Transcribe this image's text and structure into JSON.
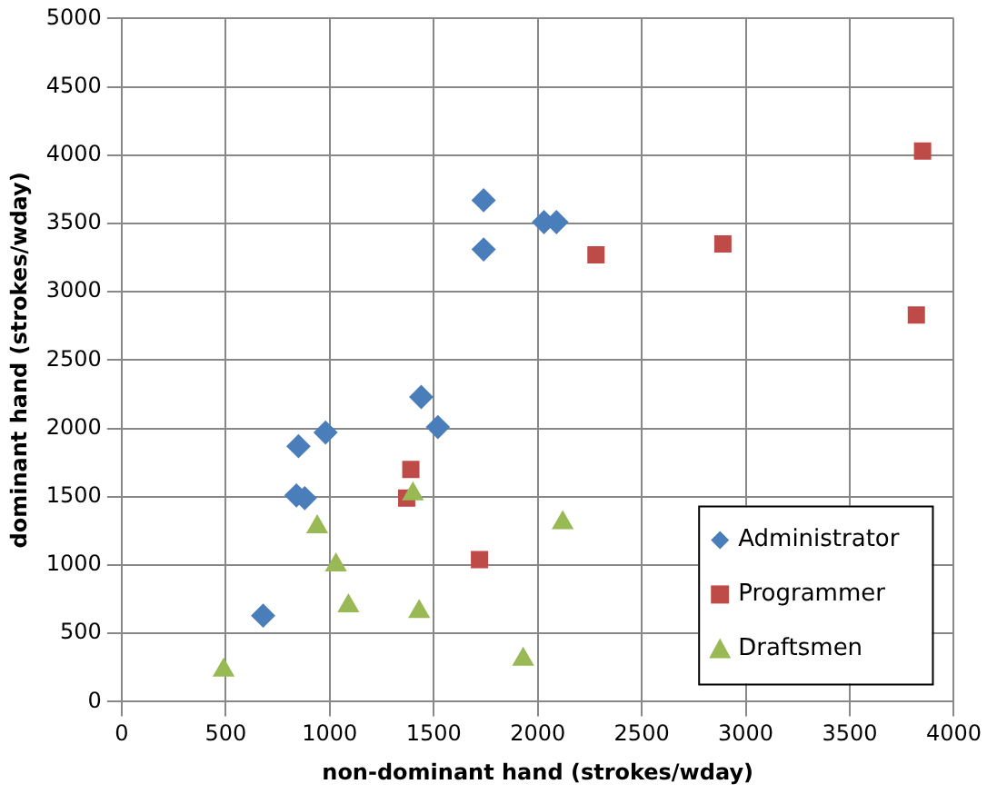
{
  "chart_data": {
    "type": "scatter",
    "xlabel": "non-dominant hand (strokes/wday)",
    "ylabel": "dominant hand (strokes/wday)",
    "xlim": [
      0,
      4000
    ],
    "xticks": [
      0,
      500,
      1000,
      1500,
      2000,
      2500,
      3000,
      3500,
      4000
    ],
    "ylim": [
      0,
      5000
    ],
    "yticks": [
      0,
      500,
      1000,
      1500,
      2000,
      2500,
      3000,
      3500,
      4000,
      4500,
      5000
    ],
    "grid": true,
    "legend": "bottom right",
    "series": [
      {
        "name": "Administrator",
        "color": "#4a7ebb",
        "marker": "diamond",
        "x": [
          1740,
          1740,
          2030,
          2090,
          1440,
          1520,
          850,
          980,
          840,
          880,
          680
        ],
        "values": [
          3670,
          3310,
          3510,
          3510,
          2230,
          2010,
          1870,
          1970,
          1510,
          1490,
          630
        ]
      },
      {
        "name": "Programmer",
        "color": "#be4b48",
        "marker": "square",
        "x": [
          1390,
          1370,
          1720,
          2280,
          2890,
          3850,
          3820
        ],
        "values": [
          1700,
          1490,
          1040,
          3270,
          3350,
          4030,
          2830
        ]
      },
      {
        "name": "Draftsmen",
        "color": "#98b954",
        "marker": "triangle",
        "x": [
          490,
          940,
          1030,
          1090,
          1430,
          1400,
          2120,
          1930
        ],
        "values": [
          230,
          1280,
          1000,
          700,
          660,
          1520,
          1310,
          310
        ]
      }
    ]
  }
}
